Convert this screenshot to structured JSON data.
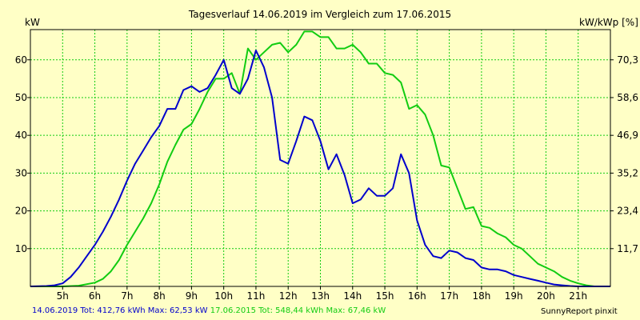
{
  "chart_data": {
    "type": "line",
    "title": "Tagesverlauf 14.06.2019 im Vergleich zum 17.06.2015",
    "ylabel": "kW",
    "ylabel_right": "kW/kWp [%]",
    "xlim": [
      4.0,
      22.0
    ],
    "ylim": [
      0,
      68
    ],
    "x_ticks": [
      {
        "value": 5,
        "label": "5h"
      },
      {
        "value": 6,
        "label": "6h"
      },
      {
        "value": 7,
        "label": "7h"
      },
      {
        "value": 8,
        "label": "8h"
      },
      {
        "value": 9,
        "label": "9h"
      },
      {
        "value": 10,
        "label": "10h"
      },
      {
        "value": 11,
        "label": "11h"
      },
      {
        "value": 12,
        "label": "12h"
      },
      {
        "value": 13,
        "label": "13h"
      },
      {
        "value": 14,
        "label": "14h"
      },
      {
        "value": 15,
        "label": "15h"
      },
      {
        "value": 16,
        "label": "16h"
      },
      {
        "value": 17,
        "label": "17h"
      },
      {
        "value": 18,
        "label": "18h"
      },
      {
        "value": 19,
        "label": "19h"
      },
      {
        "value": 20,
        "label": "20h"
      },
      {
        "value": 21,
        "label": "21h"
      }
    ],
    "y_ticks_left": [
      {
        "value": 10,
        "label": "10"
      },
      {
        "value": 20,
        "label": "20"
      },
      {
        "value": 30,
        "label": "30"
      },
      {
        "value": 40,
        "label": "40"
      },
      {
        "value": 50,
        "label": "50"
      },
      {
        "value": 60,
        "label": "60"
      }
    ],
    "y_ticks_right": [
      {
        "value": 10,
        "label": "11,7"
      },
      {
        "value": 20,
        "label": "23,4"
      },
      {
        "value": 30,
        "label": "35,2"
      },
      {
        "value": 40,
        "label": "46,9"
      },
      {
        "value": 50,
        "label": "58,6"
      },
      {
        "value": 60,
        "label": "70,3"
      }
    ],
    "grid": true,
    "background_color": "#ffffc6",
    "grid_color": "#11cc11",
    "series": [
      {
        "name": "14.06.2019",
        "color": "#0000cc",
        "points": [
          [
            4.0,
            0
          ],
          [
            4.5,
            0.1
          ],
          [
            4.75,
            0.3
          ],
          [
            5.0,
            0.8
          ],
          [
            5.25,
            2.5
          ],
          [
            5.5,
            5
          ],
          [
            5.75,
            8
          ],
          [
            6.0,
            11
          ],
          [
            6.25,
            14.5
          ],
          [
            6.5,
            18.5
          ],
          [
            6.75,
            23
          ],
          [
            7.0,
            28
          ],
          [
            7.25,
            32.5
          ],
          [
            7.5,
            36
          ],
          [
            7.75,
            39.5
          ],
          [
            8.0,
            42.5
          ],
          [
            8.25,
            47
          ],
          [
            8.5,
            47
          ],
          [
            8.75,
            52
          ],
          [
            9.0,
            53
          ],
          [
            9.25,
            51.5
          ],
          [
            9.5,
            52.5
          ],
          [
            9.75,
            56
          ],
          [
            10.0,
            60
          ],
          [
            10.25,
            52.5
          ],
          [
            10.5,
            51
          ],
          [
            10.75,
            55
          ],
          [
            11.0,
            62.5
          ],
          [
            11.25,
            58
          ],
          [
            11.5,
            50
          ],
          [
            11.75,
            33.5
          ],
          [
            12.0,
            32.5
          ],
          [
            12.25,
            38.5
          ],
          [
            12.5,
            45
          ],
          [
            12.75,
            44
          ],
          [
            13.0,
            38.5
          ],
          [
            13.25,
            31
          ],
          [
            13.5,
            35
          ],
          [
            13.75,
            29.5
          ],
          [
            14.0,
            22
          ],
          [
            14.25,
            23
          ],
          [
            14.5,
            26
          ],
          [
            14.75,
            24
          ],
          [
            15.0,
            24
          ],
          [
            15.25,
            26
          ],
          [
            15.5,
            35
          ],
          [
            15.75,
            30
          ],
          [
            16.0,
            17.5
          ],
          [
            16.25,
            11
          ],
          [
            16.5,
            8
          ],
          [
            16.75,
            7.5
          ],
          [
            17.0,
            9.5
          ],
          [
            17.25,
            9
          ],
          [
            17.5,
            7.5
          ],
          [
            17.75,
            7
          ],
          [
            18.0,
            5
          ],
          [
            18.25,
            4.5
          ],
          [
            18.5,
            4.5
          ],
          [
            18.75,
            4
          ],
          [
            19.0,
            3
          ],
          [
            19.25,
            2.5
          ],
          [
            19.5,
            2
          ],
          [
            19.75,
            1.5
          ],
          [
            20.0,
            1
          ],
          [
            20.25,
            0.5
          ],
          [
            20.5,
            0.3
          ],
          [
            20.75,
            0.1
          ],
          [
            21.0,
            0
          ],
          [
            22.0,
            0
          ]
        ]
      },
      {
        "name": "17.06.2015",
        "color": "#11cc11",
        "points": [
          [
            4.0,
            0
          ],
          [
            5.0,
            0
          ],
          [
            5.5,
            0.2
          ],
          [
            6.0,
            1
          ],
          [
            6.25,
            2
          ],
          [
            6.5,
            4
          ],
          [
            6.75,
            7
          ],
          [
            7.0,
            11
          ],
          [
            7.25,
            14.5
          ],
          [
            7.5,
            18
          ],
          [
            7.75,
            22
          ],
          [
            8.0,
            27
          ],
          [
            8.25,
            33
          ],
          [
            8.5,
            37.5
          ],
          [
            8.75,
            41.5
          ],
          [
            9.0,
            43
          ],
          [
            9.25,
            47
          ],
          [
            9.5,
            51.5
          ],
          [
            9.75,
            55
          ],
          [
            10.0,
            55
          ],
          [
            10.25,
            56.5
          ],
          [
            10.5,
            51
          ],
          [
            10.75,
            63
          ],
          [
            11.0,
            60
          ],
          [
            11.25,
            62
          ],
          [
            11.5,
            64
          ],
          [
            11.75,
            64.5
          ],
          [
            12.0,
            62
          ],
          [
            12.25,
            64
          ],
          [
            12.5,
            67.5
          ],
          [
            12.75,
            67.5
          ],
          [
            13.0,
            66
          ],
          [
            13.25,
            66
          ],
          [
            13.5,
            63
          ],
          [
            13.75,
            63
          ],
          [
            14.0,
            64
          ],
          [
            14.25,
            62
          ],
          [
            14.5,
            59
          ],
          [
            14.75,
            59
          ],
          [
            15.0,
            56.5
          ],
          [
            15.25,
            56
          ],
          [
            15.5,
            54
          ],
          [
            15.75,
            47
          ],
          [
            16.0,
            48
          ],
          [
            16.25,
            45.5
          ],
          [
            16.5,
            40
          ],
          [
            16.75,
            32
          ],
          [
            17.0,
            31.5
          ],
          [
            17.25,
            26
          ],
          [
            17.5,
            20.5
          ],
          [
            17.75,
            21
          ],
          [
            18.0,
            16
          ],
          [
            18.25,
            15.5
          ],
          [
            18.5,
            14
          ],
          [
            18.75,
            13
          ],
          [
            19.0,
            11
          ],
          [
            19.25,
            10
          ],
          [
            19.5,
            8
          ],
          [
            19.75,
            6
          ],
          [
            20.0,
            5
          ],
          [
            20.25,
            4
          ],
          [
            20.5,
            2.5
          ],
          [
            20.75,
            1.5
          ],
          [
            21.0,
            0.8
          ],
          [
            21.25,
            0.3
          ],
          [
            21.5,
            0
          ],
          [
            22.0,
            0
          ]
        ]
      }
    ]
  },
  "footer": {
    "series1_text": "14.06.2019 Tot: 412,76 kWh Max: 62,53 kW",
    "series2_text": "17.06.2015 Tot: 548,44 kWh Max: 67,46 kW",
    "credit": "SunnyReport pinxit"
  }
}
